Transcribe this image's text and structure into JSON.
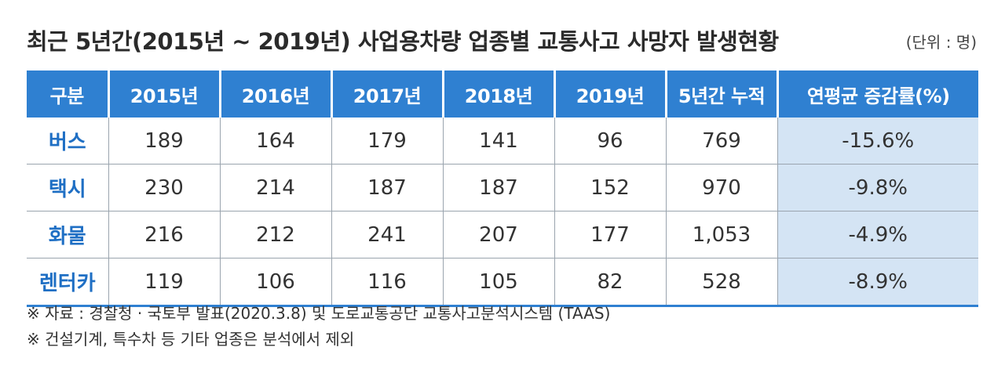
{
  "title": "최근 5년간(2015년 ~ 2019년) 사업용차량 업종별 교통사고 사망자 발생현황",
  "unit": "(단위 : 명)",
  "table": {
    "headers": [
      "구분",
      "2015년",
      "2016년",
      "2017년",
      "2018년",
      "2019년",
      "5년간 누적",
      "연평균 증감률(%)"
    ],
    "rows": [
      {
        "label": "버스",
        "cells": [
          "189",
          "164",
          "179",
          "141",
          "96",
          "769",
          "-15.6%"
        ]
      },
      {
        "label": "택시",
        "cells": [
          "230",
          "214",
          "187",
          "187",
          "152",
          "970",
          "-9.8%"
        ]
      },
      {
        "label": "화물",
        "cells": [
          "216",
          "212",
          "241",
          "207",
          "177",
          "1,053",
          "-4.9%"
        ]
      },
      {
        "label": "렌터카",
        "cells": [
          "119",
          "106",
          "116",
          "105",
          "82",
          "528",
          "-8.9%"
        ]
      }
    ]
  },
  "notes": [
    "※ 자료 : 경찰청 · 국토부 발표(2020.3.8) 및 도로교통공단 교통사고분석시스템 (TAAS)",
    "※ 건설기계, 특수차 등 기타 업종은 분석에서 제외"
  ],
  "colors": {
    "header_bg": "#2f80d1",
    "row_label": "#1f6fc4",
    "highlight_col": "#d4e4f4"
  }
}
